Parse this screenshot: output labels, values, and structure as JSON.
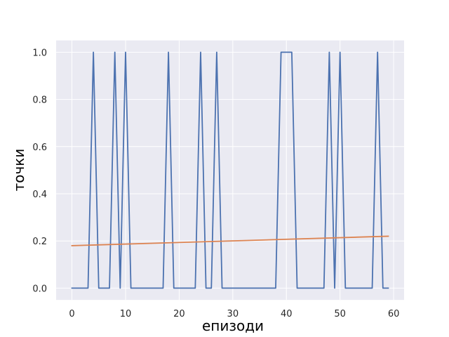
{
  "chart_data": {
    "type": "line",
    "xlabel": "епизоди",
    "ylabel": "точки",
    "xlim": [
      -2.95,
      61.95
    ],
    "ylim": [
      -0.05,
      1.05
    ],
    "xticks": [
      0,
      10,
      20,
      30,
      40,
      50,
      60
    ],
    "xtick_labels": [
      "0",
      "10",
      "20",
      "30",
      "40",
      "50",
      "60"
    ],
    "yticks": [
      0.0,
      0.2,
      0.4,
      0.6,
      0.8,
      1.0
    ],
    "ytick_labels": [
      "0.0",
      "0.2",
      "0.4",
      "0.6",
      "0.8",
      "1.0"
    ],
    "grid": true,
    "background_color": "#eaeaf2",
    "grid_color": "#ffffff",
    "series": [
      {
        "color": "#4c72b0",
        "x": [
          0,
          1,
          2,
          3,
          4,
          5,
          6,
          7,
          8,
          9,
          10,
          11,
          12,
          13,
          14,
          15,
          16,
          17,
          18,
          19,
          20,
          21,
          22,
          23,
          24,
          25,
          26,
          27,
          28,
          29,
          30,
          31,
          32,
          33,
          34,
          35,
          36,
          37,
          38,
          39,
          40,
          41,
          42,
          43,
          44,
          45,
          46,
          47,
          48,
          49,
          50,
          51,
          52,
          53,
          54,
          55,
          56,
          57,
          58,
          59
        ],
        "values": [
          0,
          0,
          0,
          0,
          1,
          0,
          0,
          0,
          1,
          0,
          1,
          0,
          0,
          0,
          0,
          0,
          0,
          0,
          1,
          0,
          0,
          0,
          0,
          0,
          1,
          0,
          0,
          1,
          0,
          0,
          0,
          0,
          0,
          0,
          0,
          0,
          0,
          0,
          0,
          1,
          1,
          1,
          0,
          0,
          0,
          0,
          0,
          0,
          1,
          0,
          1,
          0,
          0,
          0,
          0,
          0,
          0,
          1,
          0,
          0
        ]
      },
      {
        "color": "#dd8452",
        "x": [
          0,
          59
        ],
        "values": [
          0.18,
          0.22
        ]
      }
    ]
  }
}
